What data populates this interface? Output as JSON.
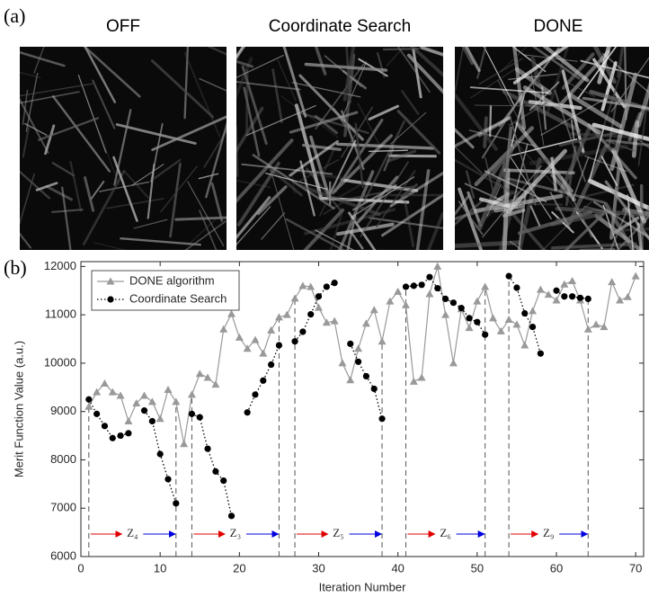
{
  "panel_labels": [
    "(a)",
    "(b)"
  ],
  "images": [
    {
      "title": "OFF"
    },
    {
      "title": "Coordinate Search"
    },
    {
      "title": "DONE"
    }
  ],
  "chart_data": {
    "type": "line",
    "xlabel": "Iteration Number",
    "ylabel": "Merit Function Value (a.u.)",
    "xlim": [
      0,
      71
    ],
    "ylim": [
      6000,
      12100
    ],
    "xticks": [
      0,
      10,
      20,
      30,
      40,
      50,
      60,
      70
    ],
    "yticks": [
      6000,
      7000,
      8000,
      9000,
      10000,
      11000,
      12000
    ],
    "legend": "upper left",
    "grid": false,
    "x": [
      1,
      2,
      3,
      4,
      5,
      6,
      7,
      8,
      9,
      10,
      11,
      12,
      13,
      14,
      15,
      16,
      17,
      18,
      19,
      20,
      21,
      22,
      23,
      24,
      25,
      26,
      27,
      28,
      29,
      30,
      31,
      32,
      33,
      34,
      35,
      36,
      37,
      38,
      39,
      40,
      41,
      42,
      43,
      44,
      45,
      46,
      47,
      48,
      49,
      50,
      51,
      52,
      53,
      54,
      55,
      56,
      57,
      58,
      59,
      60,
      61,
      62,
      63,
      64,
      65,
      66,
      67,
      68,
      69,
      70
    ],
    "series": [
      {
        "name": "DONE algorithm",
        "color": "#999999",
        "marker": "triangle",
        "values": [
          9100,
          9400,
          9580,
          9400,
          9330,
          8800,
          9170,
          9330,
          9200,
          8850,
          9450,
          9200,
          8330,
          9350,
          9780,
          9700,
          9560,
          10700,
          11020,
          10530,
          10300,
          10480,
          10200,
          10680,
          10950,
          11000,
          11340,
          11600,
          11580,
          11150,
          10840,
          10870,
          10000,
          9650,
          10300,
          10820,
          11100,
          10450,
          11280,
          11480,
          11200,
          9620,
          9700,
          11430,
          12000,
          11000,
          10000,
          11120,
          10730,
          11280,
          11580,
          10930,
          10660,
          10900,
          10800,
          10370,
          11080,
          11520,
          11420,
          11300,
          11630,
          11700,
          11300,
          10700,
          10800,
          10750,
          11680,
          11300,
          11370,
          11800
        ]
      },
      {
        "name": "Coordinate Search",
        "color": "#000000",
        "marker": "circle",
        "values": [
          9250,
          8950,
          8700,
          8450,
          8500,
          8550,
          null,
          9020,
          8800,
          8120,
          7600,
          7100,
          null,
          8950,
          8880,
          8230,
          7760,
          7570,
          6840,
          null,
          8980,
          9350,
          9640,
          9970,
          10370,
          null,
          10450,
          10650,
          11010,
          11380,
          11580,
          11660,
          null,
          10400,
          10030,
          9730,
          9470,
          8850,
          null,
          null,
          11580,
          11600,
          11620,
          11780,
          11550,
          11330,
          11250,
          11140,
          10930,
          10850,
          10590,
          null,
          null,
          11800,
          11560,
          11030,
          10750,
          10200,
          null,
          11500,
          11380,
          11380,
          11350,
          11330,
          null,
          null,
          null,
          null,
          null,
          null
        ]
      }
    ],
    "annotations": [
      {
        "text": "Z₄",
        "x": [
          1,
          12
        ]
      },
      {
        "text": "Z₃",
        "x": [
          14,
          25
        ]
      },
      {
        "text": "Z₅",
        "x": [
          27,
          38
        ]
      },
      {
        "text": "Z₆",
        "x": [
          41,
          51
        ]
      },
      {
        "text": "Z₉",
        "x": [
          54,
          64
        ]
      }
    ]
  }
}
